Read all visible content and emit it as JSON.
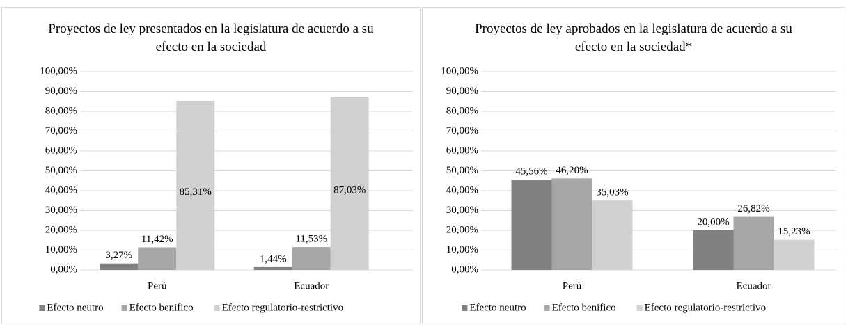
{
  "chart_data": [
    {
      "type": "bar",
      "title": "Proyectos de ley presentados en la legislatura de acuerdo a su efecto en la sociedad",
      "categories": [
        "Perú",
        "Ecuador"
      ],
      "series": [
        {
          "name": "Efecto neutro",
          "color": "#808080",
          "values": [
            3.27,
            1.44
          ],
          "value_labels": [
            "3,27%",
            "1,44%"
          ]
        },
        {
          "name": "Efecto benifico",
          "color": "#a6a6a6",
          "values": [
            11.42,
            11.53
          ],
          "value_labels": [
            "11,42%",
            "11,53%"
          ]
        },
        {
          "name": "Efecto regulatorio-restrictivo",
          "color": "#d0d0d0",
          "values": [
            85.31,
            87.03
          ],
          "value_labels": [
            "85,31%",
            "87,03%"
          ]
        }
      ],
      "ylim": [
        0,
        100
      ],
      "yticks": [
        {
          "value": 0,
          "label": "0,00%"
        },
        {
          "value": 10,
          "label": "10,00%"
        },
        {
          "value": 20,
          "label": "20,00%"
        },
        {
          "value": 30,
          "label": "30,00%"
        },
        {
          "value": 40,
          "label": "40,00%"
        },
        {
          "value": 50,
          "label": "50,00%"
        },
        {
          "value": 60,
          "label": "60,00%"
        },
        {
          "value": 70,
          "label": "70,00%"
        },
        {
          "value": 80,
          "label": "80,00%"
        },
        {
          "value": 90,
          "label": "90,00%"
        },
        {
          "value": 100,
          "label": "100,00%"
        }
      ],
      "grid": true,
      "legend": "bottom"
    },
    {
      "type": "bar",
      "title": "Proyectos de ley aprobados en la legislatura de acuerdo a su efecto en la sociedad*",
      "categories": [
        "Perú",
        "Ecuador"
      ],
      "series": [
        {
          "name": "Efecto neutro",
          "color": "#808080",
          "values": [
            45.56,
            20.0
          ],
          "value_labels": [
            "45,56%",
            "20,00%"
          ]
        },
        {
          "name": "Efecto benifico",
          "color": "#a6a6a6",
          "values": [
            46.2,
            26.82
          ],
          "value_labels": [
            "46,20%",
            "26,82%"
          ]
        },
        {
          "name": "Efecto regulatorio-restrictivo",
          "color": "#d0d0d0",
          "values": [
            35.03,
            15.23
          ],
          "value_labels": [
            "35,03%",
            "15,23%"
          ]
        }
      ],
      "ylim": [
        0,
        100
      ],
      "yticks": [
        {
          "value": 0,
          "label": "0,00%"
        },
        {
          "value": 10,
          "label": "10,00%"
        },
        {
          "value": 20,
          "label": "20,00%"
        },
        {
          "value": 30,
          "label": "30,00%"
        },
        {
          "value": 40,
          "label": "40,00%"
        },
        {
          "value": 50,
          "label": "50,00%"
        },
        {
          "value": 60,
          "label": "60,00%"
        },
        {
          "value": 70,
          "label": "70,00%"
        },
        {
          "value": 80,
          "label": "80,00%"
        },
        {
          "value": 90,
          "label": "90,00%"
        },
        {
          "value": 100,
          "label": "100,00%"
        }
      ],
      "grid": true,
      "legend": "bottom"
    }
  ]
}
